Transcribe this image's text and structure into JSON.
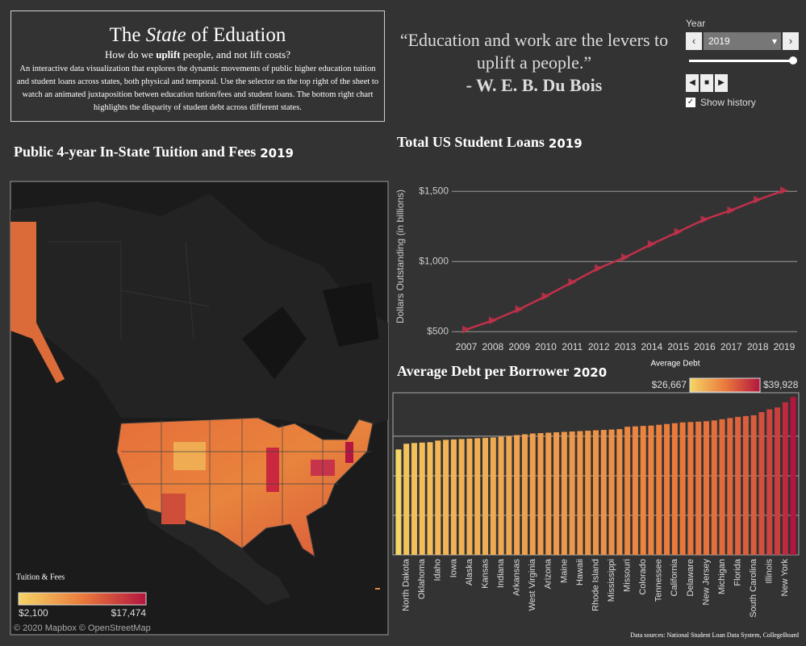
{
  "header": {
    "title": [
      "The",
      "State",
      "of Eduation"
    ],
    "subtitle": [
      "How do we",
      "uplift",
      "people, and not lift costs?"
    ],
    "description": "An interactive data visualization that explores the dynamic movements of public higher education tuition and student loans across states, both physical and temporal. Use the selector on the top right of the sheet to watch an animated juxtaposition betwen education tution/fees and student loans. The bottom right chart highlights the disparity of student debt across different states."
  },
  "quote": {
    "text": "“Education and work are the levers to uplift a people.”",
    "author": "- W. E. B. Du Bois"
  },
  "controls": {
    "label": "Year",
    "year": "2019",
    "show_history": "Show history"
  },
  "chart_data": [
    {
      "type": "map",
      "title": "Public 4-year In-State Tuition and Fees",
      "title_year": "2019",
      "legend_title": "Tuition & Fees",
      "color_scale": [
        {
          "value": 2100,
          "label": "$2,100"
        },
        {
          "value": 17474,
          "label": "$17,474"
        }
      ],
      "colors": [
        "#f5d565",
        "#ea7a3c",
        "#b3163f"
      ],
      "credit": "© 2020 Mapbox © OpenStreetMap"
    },
    {
      "type": "line",
      "title": "Total US Student Loans",
      "title_year": "2019",
      "y_label": "Dollars Outstanding (in billions)",
      "categories": [
        "2007",
        "2008",
        "2009",
        "2010",
        "2011",
        "2012",
        "2013",
        "2014",
        "2015",
        "2016",
        "2017",
        "2018",
        "2019"
      ],
      "values": [
        516,
        580,
        660,
        753,
        853,
        953,
        1030,
        1124,
        1212,
        1300,
        1365,
        1440,
        1506
      ],
      "color": "#c0304a",
      "ylim": [
        450,
        1570
      ],
      "yticks": [
        {
          "value": 500,
          "label": "$500"
        },
        {
          "value": 1000,
          "label": "$1,000"
        },
        {
          "value": 1500,
          "label": "$1,500"
        }
      ],
      "grid": true
    },
    {
      "type": "bar",
      "title": "Average Debt per Borrower",
      "title_year": "2020",
      "legend_title": "Average Debt",
      "color_scale": [
        {
          "value": 26667,
          "label": "$26,667"
        },
        {
          "value": 39928,
          "label": "$39,928"
        }
      ],
      "colors": [
        "#f5d565",
        "#ea7a3c",
        "#b3163f"
      ],
      "categories": [
        null,
        "North Dakota",
        null,
        "Oklahoma",
        null,
        "Idaho",
        null,
        "Iowa",
        null,
        "Alaska",
        null,
        "Kansas",
        null,
        "Indiana",
        null,
        "Arkansas",
        null,
        "West Virginia",
        null,
        "Arizona",
        null,
        "Maine",
        null,
        "Hawaii",
        null,
        "Rhode Island",
        null,
        "Mississippi",
        null,
        "Missouri",
        null,
        "Colorado",
        null,
        "Tennessee",
        null,
        "California",
        null,
        "Delaware",
        null,
        "New Jersey",
        null,
        "Michigan",
        null,
        "Florida",
        null,
        "South Carolina",
        null,
        "Illinois",
        null,
        "New York",
        null
      ],
      "values": [
        26667,
        28100,
        28300,
        28400,
        28500,
        28900,
        29100,
        29200,
        29300,
        29400,
        29500,
        29600,
        29700,
        29900,
        30100,
        30300,
        30500,
        30700,
        30800,
        30900,
        31000,
        31100,
        31200,
        31300,
        31400,
        31500,
        31600,
        31700,
        31800,
        32400,
        32500,
        32600,
        32700,
        32900,
        33100,
        33300,
        33500,
        33600,
        33700,
        33800,
        34000,
        34300,
        34600,
        34900,
        35100,
        35300,
        36100,
        36800,
        37300,
        38600,
        39928
      ],
      "ylim": [
        0,
        41000
      ],
      "yticks": [
        0,
        10000,
        20000,
        30000
      ],
      "grid": true
    }
  ],
  "footnote": "Data sources: National Student Loan Data System, CollegeBoard"
}
